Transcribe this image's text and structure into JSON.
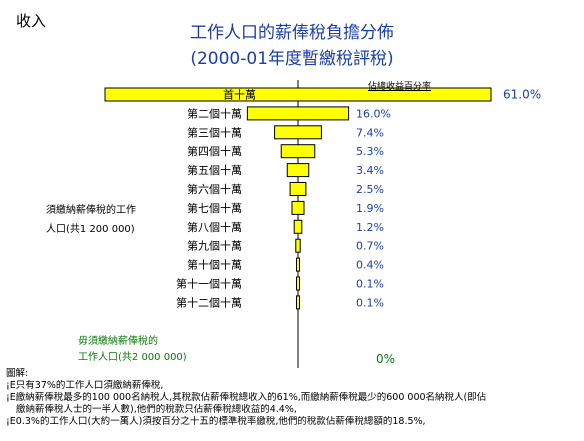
{
  "corner_label": "收入",
  "title": "工作人口的薪俸稅負擔分佈",
  "subtitle": "(2000-01年度暫繳稅評稅)",
  "chart_data": {
    "type": "bar",
    "orientation": "horizontal-centered",
    "title": "工作人口的薪俸稅負擔分佈",
    "subtitle": "(2000-01年度暫繳稅評稅)",
    "value_header": "佔總收益百分率",
    "categories": [
      "首十萬",
      "第二個十萬",
      "第三個十萬",
      "第四個十萬",
      "第五個十萬",
      "第六個十萬",
      "第七個十萬",
      "第八個十萬",
      "第九個十萬",
      "第十個十萬",
      "第十一個十萬",
      "第十二個十萬"
    ],
    "value_labels": [
      "61.0%",
      "16.0%",
      "7.4%",
      "5.3%",
      "3.4%",
      "2.5%",
      "1.9%",
      "1.2%",
      "0.7%",
      "0.4%",
      "0.1%",
      "0.1%"
    ],
    "values": [
      61.0,
      16.0,
      7.4,
      5.3,
      3.4,
      2.5,
      1.9,
      1.2,
      0.7,
      0.4,
      0.1,
      0.1
    ],
    "bar_color": "#ffff00",
    "taxpayers_group_label": "須繳納薪俸稅的工作人口(共1 200 000)",
    "non_taxpayers_group_label": "毋須繳納薪俸稅的工作人口(共2 000 000)",
    "non_taxpayers_value": "0%"
  },
  "groups": {
    "taxpayers": [
      "須繳納薪俸稅的工作",
      "人口(共1 200 000)"
    ],
    "non_taxpayers": [
      "毋須繳納薪俸稅的",
      "工作人口(共2 000 000)"
    ],
    "non_taxpayers_value": "0%"
  },
  "notes": {
    "heading": "圖解:",
    "lines": [
      "¡E只有37%的工作人口須繳納薪俸稅,",
      "¡E繳納薪俸稅最多的100 000名納稅人,其稅款佔薪俸稅總收入的61%,而繳納薪俸稅最少的600 000名納稅人(即佔",
      "繳納薪俸稅人士的一半人數),他們的稅款只佔薪俸稅總收益的4.4%,",
      "¡E0.3%的工作人口(大約一萬人)須按百分之十五的標準稅率繳稅,他們的稅款佔薪俸稅總額的18.5%,"
    ]
  },
  "colors": {
    "title": "#1a3fa8",
    "value_labels": "#1a3fa8",
    "non_taxpayers": "#0a7a0a",
    "bars": "#ffff00"
  }
}
